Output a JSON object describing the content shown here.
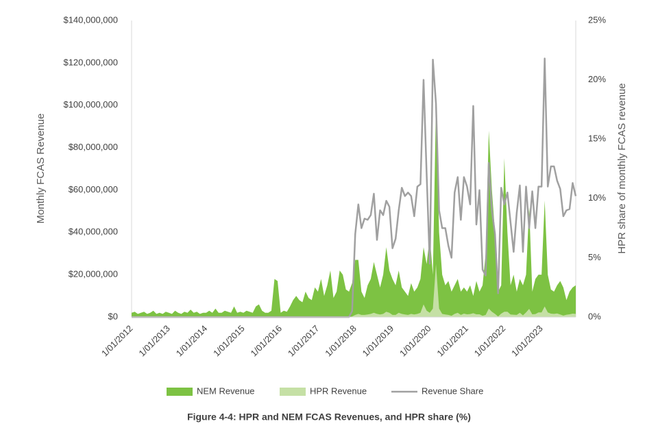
{
  "chart_data": {
    "type": "area-line",
    "caption": "Figure 4-4: HPR and NEM FCAS Revenues, and HPR share (%)",
    "ylabel": "Monthly FCAS Revenue",
    "y2label": "HPR share of monthly FCAS revenue",
    "categories": [
      "1/01/2012",
      null,
      null,
      null,
      null,
      null,
      null,
      null,
      null,
      null,
      null,
      null,
      "1/01/2013",
      null,
      null,
      null,
      null,
      null,
      null,
      null,
      null,
      null,
      null,
      null,
      "1/01/2014",
      null,
      null,
      null,
      null,
      null,
      null,
      null,
      null,
      null,
      null,
      null,
      "1/01/2015",
      null,
      null,
      null,
      null,
      null,
      null,
      null,
      null,
      null,
      null,
      null,
      "1/01/2016",
      null,
      null,
      null,
      null,
      null,
      null,
      null,
      null,
      null,
      null,
      null,
      "1/01/2017",
      null,
      null,
      null,
      null,
      null,
      null,
      null,
      null,
      null,
      null,
      null,
      "1/01/2018",
      null,
      null,
      null,
      null,
      null,
      null,
      null,
      null,
      null,
      null,
      null,
      "1/01/2019",
      null,
      null,
      null,
      null,
      null,
      null,
      null,
      null,
      null,
      null,
      null,
      "1/01/2020",
      null,
      null,
      null,
      null,
      null,
      null,
      null,
      null,
      null,
      null,
      null,
      "1/01/2021",
      null,
      null,
      null,
      null,
      null,
      null,
      null,
      null,
      null,
      null,
      null,
      "1/01/2022",
      null,
      null,
      null,
      null,
      null,
      null,
      null,
      null,
      null,
      null,
      null,
      "1/01/2023",
      null,
      null,
      null,
      null,
      null,
      null,
      null,
      null,
      null,
      null,
      null
    ],
    "series": [
      {
        "name": "NEM Revenue",
        "kind": "area",
        "color": "#7dc243",
        "values": [
          2000000,
          2500000,
          1500000,
          2000000,
          2500000,
          1500000,
          2000000,
          3000000,
          1500000,
          2000000,
          1500000,
          2500000,
          2000000,
          1500000,
          3000000,
          2000000,
          1500000,
          2500000,
          2000000,
          3500000,
          2000000,
          2500000,
          1500000,
          2000000,
          2000000,
          3000000,
          2000000,
          4000000,
          2000000,
          2000000,
          3000000,
          2500000,
          2000000,
          5000000,
          2000000,
          2500000,
          2000000,
          3000000,
          2500000,
          2000000,
          5000000,
          6000000,
          3000000,
          2000000,
          2000000,
          3000000,
          18000000,
          17000000,
          2000000,
          3000000,
          2500000,
          5000000,
          8000000,
          10000000,
          8000000,
          7000000,
          12000000,
          9000000,
          8000000,
          14000000,
          12000000,
          18000000,
          10000000,
          15000000,
          22000000,
          9000000,
          12000000,
          22000000,
          20000000,
          13000000,
          12000000,
          16000000,
          27000000,
          27000000,
          12000000,
          9000000,
          15000000,
          18000000,
          26000000,
          20000000,
          14000000,
          20000000,
          33000000,
          22000000,
          18000000,
          15000000,
          22000000,
          14000000,
          12000000,
          10000000,
          16000000,
          12000000,
          14000000,
          18000000,
          33000000,
          25000000,
          38000000,
          20000000,
          100000000,
          40000000,
          20000000,
          15000000,
          17000000,
          12000000,
          15000000,
          18000000,
          12000000,
          14000000,
          12000000,
          15000000,
          10000000,
          17000000,
          12000000,
          15000000,
          30000000,
          88000000,
          60000000,
          40000000,
          12000000,
          15000000,
          75000000,
          40000000,
          15000000,
          20000000,
          12000000,
          18000000,
          15000000,
          20000000,
          52000000,
          12000000,
          18000000,
          20000000,
          20000000,
          55000000,
          20000000,
          13000000,
          12000000,
          15000000,
          17000000,
          14000000,
          8000000,
          12000000,
          14000000,
          15000000
        ]
      },
      {
        "name": "HPR Revenue",
        "kind": "area",
        "color": "#c5e0a5",
        "values": [
          0,
          0,
          0,
          0,
          0,
          0,
          0,
          0,
          0,
          0,
          0,
          0,
          0,
          0,
          0,
          0,
          0,
          0,
          0,
          0,
          0,
          0,
          0,
          0,
          0,
          0,
          0,
          0,
          0,
          0,
          0,
          0,
          0,
          0,
          0,
          0,
          0,
          0,
          0,
          0,
          0,
          0,
          0,
          0,
          0,
          0,
          0,
          0,
          0,
          0,
          0,
          0,
          0,
          0,
          0,
          0,
          0,
          0,
          0,
          0,
          0,
          0,
          0,
          0,
          0,
          0,
          0,
          0,
          0,
          0,
          0,
          300000,
          1000000,
          1500000,
          1000000,
          1000000,
          1200000,
          1500000,
          2000000,
          1500000,
          1200000,
          1500000,
          2500000,
          2000000,
          1000000,
          1000000,
          2000000,
          1500000,
          1200000,
          1000000,
          1500000,
          1200000,
          1500000,
          2000000,
          6000000,
          3000000,
          2000000,
          4000000,
          25000000,
          4000000,
          1500000,
          1200000,
          1000000,
          600000,
          1500000,
          2000000,
          1000000,
          1600000,
          1300000,
          1400000,
          1800000,
          1300000,
          1300000,
          600000,
          1000000,
          4000000,
          2500000,
          1500000,
          300000,
          1600000,
          2500000,
          2500000,
          1200000,
          1100000,
          1000000,
          2000000,
          800000,
          2200000,
          3900000,
          1300000,
          1400000,
          2200000,
          2200000,
          5000000,
          2200000,
          1600000,
          1500000,
          1700000,
          1200000,
          700000,
          1100000,
          1300000,
          1600000,
          1500000
        ]
      },
      {
        "name": "Revenue Share",
        "kind": "line",
        "axis": "y2",
        "color": "#a0a0a0",
        "values": [
          0,
          0,
          0,
          0,
          0,
          0,
          0,
          0,
          0,
          0,
          0,
          0,
          0,
          0,
          0,
          0,
          0,
          0,
          0,
          0,
          0,
          0,
          0,
          0,
          0,
          0,
          0,
          0,
          0,
          0,
          0,
          0,
          0,
          0,
          0,
          0,
          0,
          0,
          0,
          0,
          0,
          0,
          0,
          0,
          0,
          0,
          0,
          0,
          0,
          0,
          0,
          0,
          0,
          0,
          0,
          0,
          0,
          0,
          0,
          0,
          0,
          0,
          0,
          0,
          0,
          0,
          0,
          0,
          0,
          0,
          0,
          0.5,
          7,
          9.5,
          7.5,
          8.3,
          8.2,
          8.6,
          10.4,
          6.5,
          9,
          8.6,
          9.8,
          9.3,
          5.8,
          6.6,
          9,
          10.9,
          10.2,
          10.5,
          10.2,
          8.5,
          11,
          11.2,
          20,
          12,
          4.5,
          21.7,
          18,
          9,
          7.5,
          7.5,
          6,
          5,
          10.5,
          11.8,
          8.2,
          11.8,
          11,
          9.5,
          17.8,
          7.8,
          10.7,
          4,
          3.5,
          13,
          9,
          7,
          2,
          10.9,
          9.5,
          10.5,
          8,
          5.5,
          8.8,
          11.1,
          5.5,
          11,
          7.5,
          10.6,
          7.5,
          11,
          11,
          21.8,
          11,
          12.7,
          12.7,
          11.5,
          10.8,
          8.5,
          9,
          9.1,
          11.3,
          10.2
        ]
      }
    ],
    "ylim": [
      0,
      140000000
    ],
    "yticks": [
      {
        "value": 0,
        "label": "$0"
      },
      {
        "value": 20000000,
        "label": "$20,000,000"
      },
      {
        "value": 40000000,
        "label": "$40,000,000"
      },
      {
        "value": 60000000,
        "label": "$60,000,000"
      },
      {
        "value": 80000000,
        "label": "$80,000,000"
      },
      {
        "value": 100000000,
        "label": "$100,000,000"
      },
      {
        "value": 120000000,
        "label": "$120,000,000"
      },
      {
        "value": 140000000,
        "label": "$140,000,000"
      }
    ],
    "y2lim": [
      0,
      25
    ],
    "y2ticks": [
      {
        "value": 0,
        "label": "0%"
      },
      {
        "value": 5,
        "label": "5%"
      },
      {
        "value": 10,
        "label": "10%"
      },
      {
        "value": 15,
        "label": "15%"
      },
      {
        "value": 20,
        "label": "20%"
      },
      {
        "value": 25,
        "label": "25%"
      }
    ],
    "grid": false,
    "legend": "bottom"
  }
}
